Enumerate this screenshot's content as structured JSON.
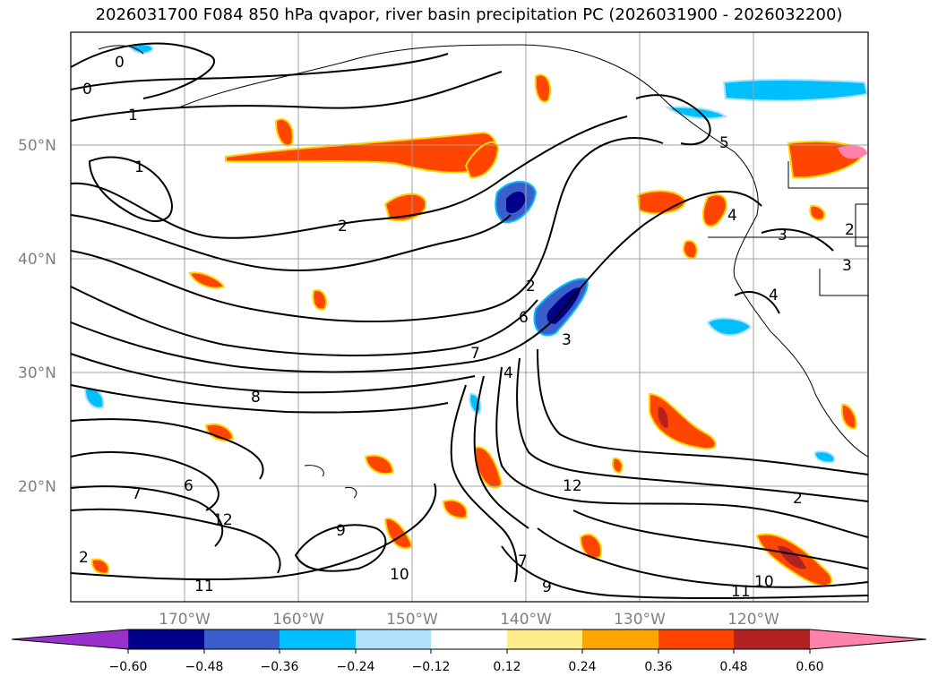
{
  "title": "2026031700 F084 850 hPa qvapor, river basin precipitation PC (2026031900 - 2026032200)",
  "map": {
    "lat_labels": [
      "50°N",
      "40°N",
      "30°N",
      "20°N"
    ],
    "lon_labels": [
      "170°W",
      "160°W",
      "150°W",
      "140°W",
      "130°W",
      "120°W"
    ],
    "contour_labels": [
      "0",
      "0",
      "1",
      "1",
      "2",
      "2",
      "2",
      "3",
      "3",
      "4",
      "4",
      "6",
      "7",
      "7",
      "8",
      "9",
      "9",
      "10",
      "10",
      "11",
      "11",
      "12",
      "12",
      "6",
      "7",
      "2",
      "2",
      "3",
      "4",
      "5"
    ]
  },
  "colorbar": {
    "labels": [
      "−0.60",
      "−0.48",
      "−0.36",
      "−0.24",
      "−0.12",
      "0.12",
      "0.24",
      "0.36",
      "0.48",
      "0.60"
    ],
    "colors": [
      "#9932cc",
      "#00008b",
      "#3a5fcd",
      "#00bfff",
      "#b0e2ff",
      "#ffffff",
      "#ffec8b",
      "#ffa500",
      "#ff4500",
      "#b22222",
      "#ff82ab"
    ]
  }
}
